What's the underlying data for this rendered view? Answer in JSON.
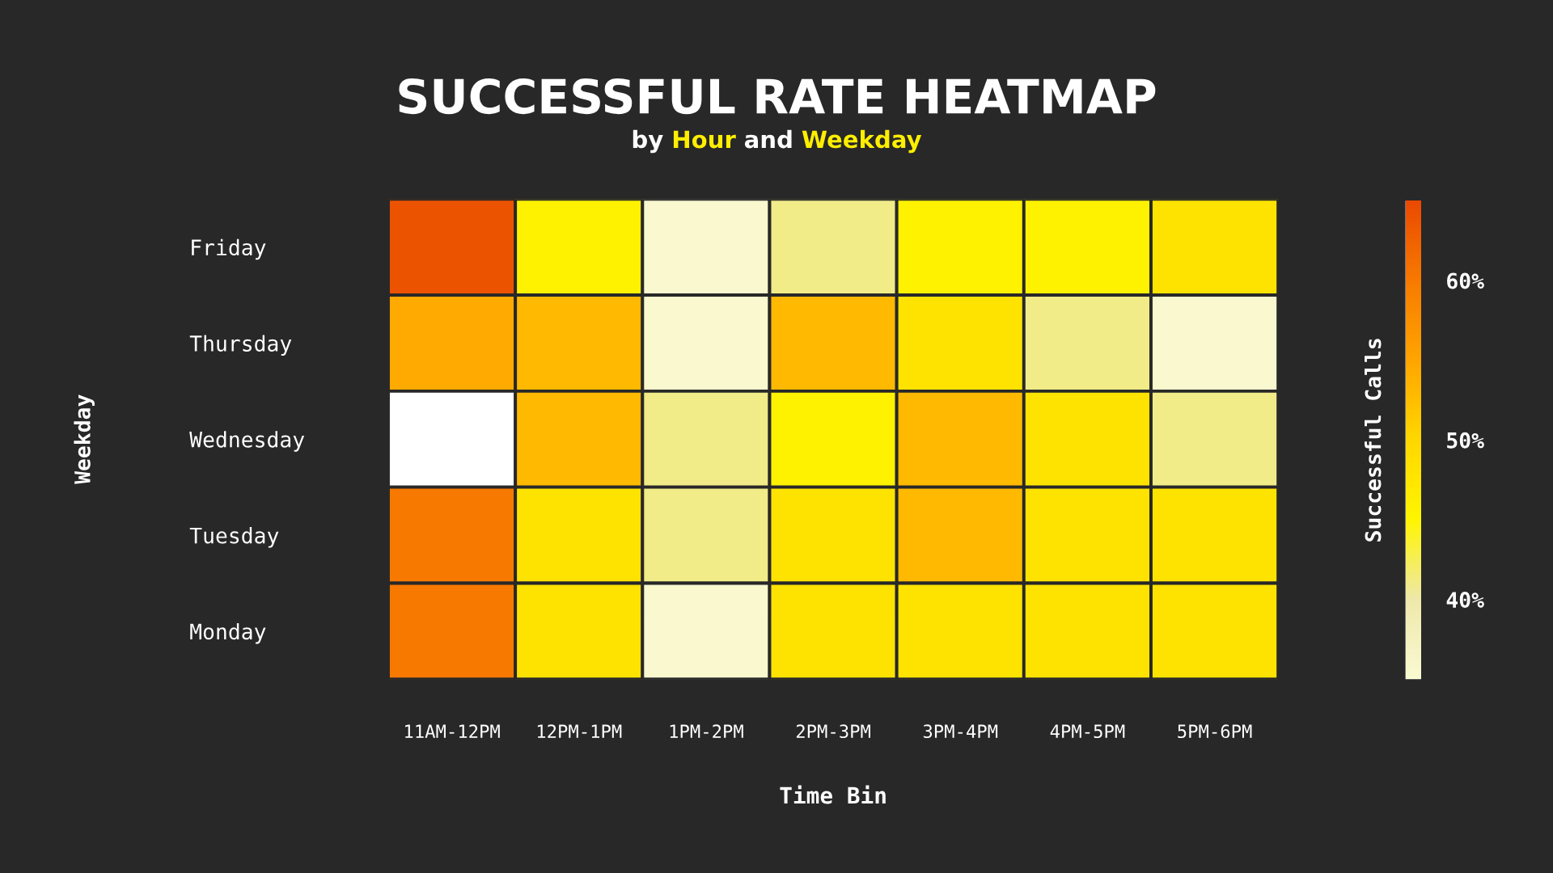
{
  "chart_data": {
    "type": "heatmap",
    "title": "SUCCESSFUL RATE HEATMAP",
    "subtitle": "by Hour and Weekday",
    "xlabel": "Time Bin",
    "ylabel": "Weekday",
    "clabel": "Successful Calls",
    "categories": [
      "11AM-12PM",
      "12PM-1PM",
      "1PM-2PM",
      "2PM-3PM",
      "3PM-4PM",
      "4PM-5PM",
      "5PM-6PM"
    ],
    "y_categories": [
      "Friday",
      "Thursday",
      "Wednesday",
      "Tuesday",
      "Monday"
    ],
    "cells": [
      [
        64,
        45.5,
        35.5,
        41,
        45.5,
        45.5,
        48
      ],
      [
        54.5,
        53,
        35.5,
        53,
        48,
        41,
        35.5
      ],
      [
        null,
        53,
        41,
        45.5,
        53,
        48,
        41
      ],
      [
        60,
        48,
        41,
        48,
        53,
        48,
        48
      ],
      [
        60,
        48,
        35.5,
        48,
        48,
        48,
        48
      ]
    ],
    "clim": [
      35,
      65
    ],
    "cticks": [
      {
        "value": 40,
        "label": "40%"
      },
      {
        "value": 50,
        "label": "50%"
      },
      {
        "value": 60,
        "label": "60%"
      }
    ]
  }
}
